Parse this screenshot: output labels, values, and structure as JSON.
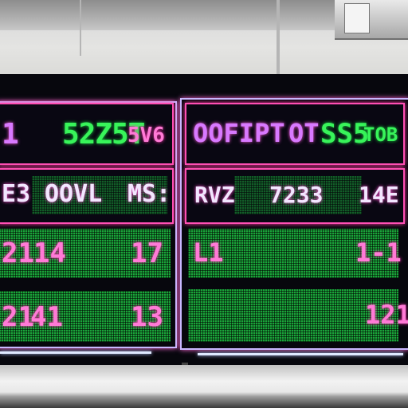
{
  "scene": {
    "description_colors": {
      "neon_pink": "#ff4fb4",
      "led_green": "#1aa43a",
      "board_black": "#07070d"
    }
  },
  "left_panel": {
    "header": {
      "code": "1",
      "big": "52Z5T",
      "small": "5V6"
    },
    "row2": {
      "a": "E3",
      "b": "OOVL",
      "c": "MS:"
    },
    "cells": [
      {
        "left": "21",
        "mid": "14",
        "right": "17"
      },
      {
        "left": "21",
        "mid": "41",
        "right": "13"
      }
    ]
  },
  "right_panel": {
    "header": {
      "code": "OOFIPT",
      "mid": "OT",
      "big": "SS5",
      "small": "TOB"
    },
    "row2": {
      "a": "RVZ",
      "b": "7233",
      "c": "14E"
    },
    "cells": [
      {
        "left": "L1",
        "right": "1-1"
      },
      {
        "left": "",
        "right": "121"
      }
    ]
  }
}
